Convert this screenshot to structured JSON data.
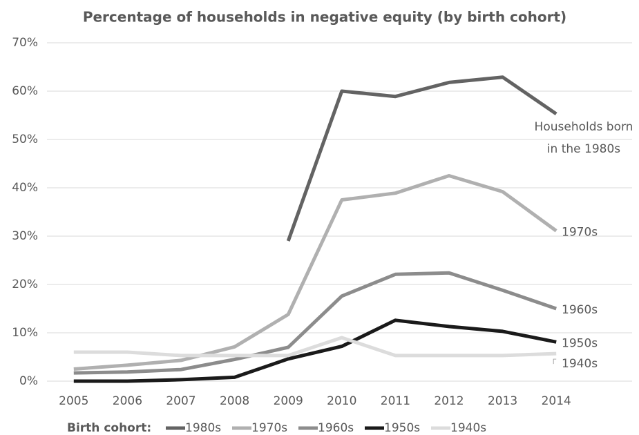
{
  "chart_data": {
    "type": "line",
    "title": "Percentage of households in negative equity (by birth cohort)",
    "categories": [
      "2005",
      "2006",
      "2007",
      "2008",
      "2009",
      "2010",
      "2011",
      "2012",
      "2013",
      "2014"
    ],
    "series": [
      {
        "name": "1980s",
        "color": "#636363",
        "values": [
          null,
          null,
          null,
          null,
          29,
          60,
          58.9,
          61.8,
          62.9,
          55.3
        ],
        "end_label": [
          "Households born",
          "in the 1980s"
        ]
      },
      {
        "name": "1970s",
        "color": "#b0b0b0",
        "values": [
          2.5,
          3.3,
          4.3,
          7.1,
          13.8,
          37.5,
          38.9,
          42.5,
          39.2,
          31.1
        ],
        "end_label": [
          "1970s"
        ]
      },
      {
        "name": "1960s",
        "color": "#8c8c8c",
        "values": [
          1.7,
          1.9,
          2.4,
          4.5,
          7.0,
          17.6,
          22.1,
          22.4,
          18.8,
          15.0
        ],
        "end_label": [
          "1960s"
        ]
      },
      {
        "name": "1950s",
        "color": "#1a1a1a",
        "values": [
          0,
          0,
          0.3,
          0.8,
          4.6,
          7.2,
          12.6,
          11.3,
          10.3,
          8.1
        ],
        "end_label": [
          "1950s"
        ]
      },
      {
        "name": "1940s",
        "color": "#dcdcdc",
        "values": [
          6.0,
          6.0,
          5.3,
          5.3,
          5.3,
          9.0,
          5.3,
          5.3,
          5.3,
          5.7
        ],
        "end_label": [
          "1940s"
        ]
      }
    ],
    "ylim": [
      0,
      70
    ],
    "yticks": [
      {
        "value": 0,
        "label": "0%"
      },
      {
        "value": 10,
        "label": "10%"
      },
      {
        "value": 20,
        "label": "20%"
      },
      {
        "value": 30,
        "label": "30%"
      },
      {
        "value": 40,
        "label": "40%"
      },
      {
        "value": 50,
        "label": "50%"
      },
      {
        "value": 60,
        "label": "60%"
      },
      {
        "value": 70,
        "label": "70%"
      }
    ],
    "grid": true,
    "legend_title": "Birth cohort:",
    "legend_position": "bottom"
  }
}
